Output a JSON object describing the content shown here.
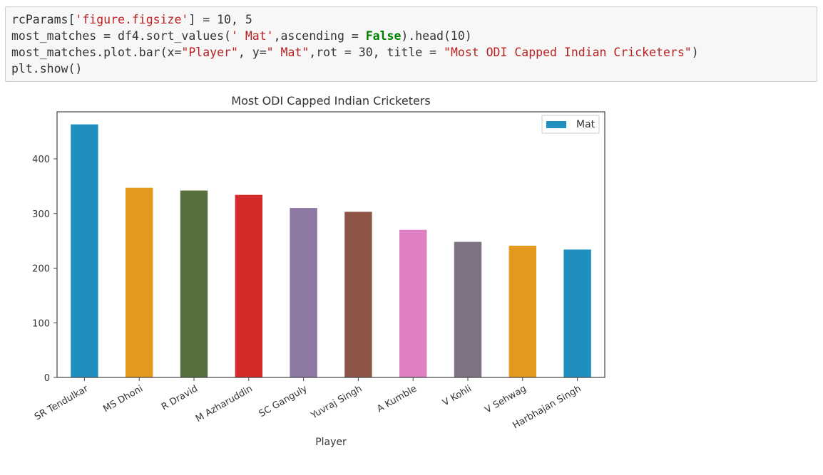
{
  "code_cell": {
    "lines": [
      [
        {
          "t": "rcParams[",
          "c": ""
        },
        {
          "t": "'figure.figsize'",
          "c": "str"
        },
        {
          "t": "] = 10, 5",
          "c": ""
        }
      ],
      [
        {
          "t": "most_matches = df4.sort_values(",
          "c": ""
        },
        {
          "t": "' Mat'",
          "c": "str"
        },
        {
          "t": ",ascending = ",
          "c": ""
        },
        {
          "t": "False",
          "c": "kw"
        },
        {
          "t": ").head(10)",
          "c": ""
        }
      ],
      [
        {
          "t": "most_matches.plot.bar(x=",
          "c": ""
        },
        {
          "t": "\"Player\"",
          "c": "str"
        },
        {
          "t": ", y=",
          "c": ""
        },
        {
          "t": "\" Mat\"",
          "c": "str"
        },
        {
          "t": ",rot = 30, title = ",
          "c": ""
        },
        {
          "t": "\"Most ODI Capped Indian Cricketers\"",
          "c": "str"
        },
        {
          "t": ")",
          "c": ""
        }
      ],
      [
        {
          "t": "plt.show()",
          "c": ""
        }
      ]
    ]
  },
  "chart_data": {
    "type": "bar",
    "title": "Most ODI Capped Indian Cricketers",
    "xlabel": "Player",
    "ylabel": "",
    "categories": [
      "SR Tendulkar",
      "MS Dhoni",
      "R Dravid",
      "M Azharuddin",
      "SC Ganguly",
      "Yuvraj Singh",
      "A Kumble",
      "V Kohli",
      "V Sehwag",
      "Harbhajan Singh"
    ],
    "series": [
      {
        "name": "Mat",
        "values": [
          463,
          347,
          342,
          334,
          310,
          303,
          270,
          248,
          241,
          234
        ]
      }
    ],
    "bar_colors": [
      "#1f8fc0",
      "#e39a1c",
      "#55703c",
      "#d42a2a",
      "#8d78a3",
      "#8e5446",
      "#de7fc4",
      "#7e7283",
      "#e39a1c",
      "#1f8fc0"
    ],
    "yticks": [
      0,
      100,
      200,
      300,
      400
    ],
    "ylim": [
      0,
      486
    ],
    "x_tick_rotation_deg": 30,
    "grid": false,
    "legend_position": "top-right",
    "legend_color": "#1f8fc0"
  }
}
